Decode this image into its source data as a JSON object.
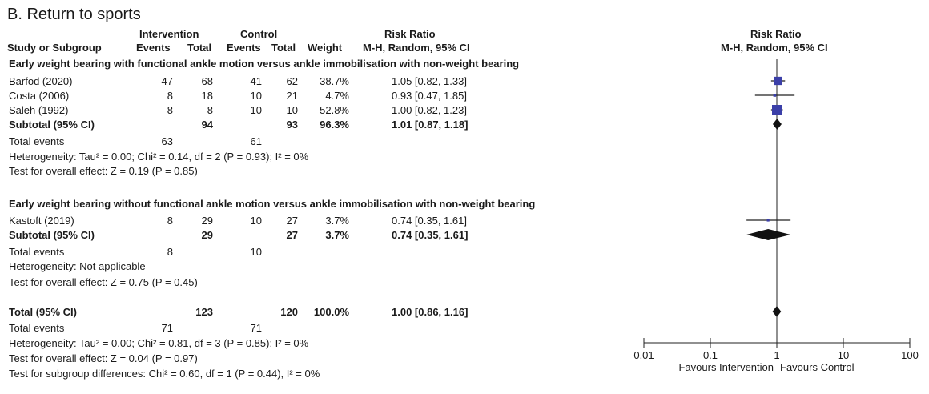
{
  "panel_title": "B. Return to sports",
  "headers": {
    "group_intervention": "Intervention",
    "group_control": "Control",
    "risk_ratio": "Risk Ratio",
    "study": "Study or Subgroup",
    "events_i": "Events",
    "total_i": "Total",
    "events_c": "Events",
    "total_c": "Total",
    "weight": "Weight",
    "method": "M-H, Random, 95% CI",
    "plot_title": "Risk Ratio",
    "plot_method": "M-H, Random, 95% CI"
  },
  "subgroups": [
    {
      "name": "Early weight bearing with functional ankle motion versus ankle immobilisation with non-weight bearing",
      "studies": [
        {
          "study": "Barfod (2020)",
          "ev_i": "47",
          "tot_i": "68",
          "ev_c": "41",
          "tot_c": "62",
          "weight": "38.7%",
          "ci": "1.05 [0.82, 1.33]"
        },
        {
          "study": "Costa (2006)",
          "ev_i": "8",
          "tot_i": "18",
          "ev_c": "10",
          "tot_c": "21",
          "weight": "4.7%",
          "ci": "0.93 [0.47, 1.85]"
        },
        {
          "study": "Saleh (1992)",
          "ev_i": "8",
          "tot_i": "8",
          "ev_c": "10",
          "tot_c": "10",
          "weight": "52.8%",
          "ci": "1.00 [0.82, 1.23]"
        }
      ],
      "subtotal": {
        "label": "Subtotal (95% CI)",
        "tot_i": "94",
        "tot_c": "93",
        "weight": "96.3%",
        "ci": "1.01 [0.87, 1.18]"
      },
      "total_events": {
        "label": "Total events",
        "ev_i": "63",
        "ev_c": "61"
      },
      "heterogeneity": "Heterogeneity: Tau² = 0.00; Chi² = 0.14, df = 2 (P = 0.93); I² = 0%",
      "overall": "Test for overall effect: Z = 0.19 (P = 0.85)"
    },
    {
      "name": "Early weight bearing without functional ankle motion versus ankle immobilisation with non-weight bearing",
      "studies": [
        {
          "study": "Kastoft (2019)",
          "ev_i": "8",
          "tot_i": "29",
          "ev_c": "10",
          "tot_c": "27",
          "weight": "3.7%",
          "ci": "0.74 [0.35, 1.61]"
        }
      ],
      "subtotal": {
        "label": "Subtotal (95% CI)",
        "tot_i": "29",
        "tot_c": "27",
        "weight": "3.7%",
        "ci": "0.74 [0.35, 1.61]"
      },
      "total_events": {
        "label": "Total events",
        "ev_i": "8",
        "ev_c": "10"
      },
      "heterogeneity": "Heterogeneity: Not applicable",
      "overall": "Test for overall effect: Z = 0.75 (P = 0.45)"
    }
  ],
  "total": {
    "label": "Total (95% CI)",
    "tot_i": "123",
    "tot_c": "120",
    "weight": "100.0%",
    "ci": "1.00 [0.86, 1.16]"
  },
  "total_events": {
    "label": "Total events",
    "ev_i": "71",
    "ev_c": "71"
  },
  "total_heterogeneity": "Heterogeneity: Tau² = 0.00; Chi² = 0.81, df = 3 (P = 0.85); I² = 0%",
  "total_overall": "Test for overall effect: Z = 0.04 (P = 0.97)",
  "subgroup_differences": "Test for subgroup differences: Chi² = 0.60, df = 1 (P = 0.44), I² = 0%",
  "chart_data": {
    "type": "scatter",
    "scale": "log",
    "xlim": [
      0.01,
      100
    ],
    "ticks": [
      "0.01",
      "0.1",
      "1",
      "10",
      "100"
    ],
    "tick_values": [
      0.01,
      0.1,
      1,
      10,
      100
    ],
    "xlabel_left": "Favours Intervention",
    "xlabel_right": "Favours Control",
    "marker_color": "#3b3fa8",
    "studies": [
      {
        "study": "Barfod (2020)",
        "rr": 1.05,
        "lo": 0.82,
        "hi": 1.33,
        "weight": 38.7
      },
      {
        "study": "Costa (2006)",
        "rr": 0.93,
        "lo": 0.47,
        "hi": 1.85,
        "weight": 4.7
      },
      {
        "study": "Saleh (1992)",
        "rr": 1.0,
        "lo": 0.82,
        "hi": 1.23,
        "weight": 52.8
      },
      {
        "study": "Kastoft (2019)",
        "rr": 0.74,
        "lo": 0.35,
        "hi": 1.61,
        "weight": 3.7
      }
    ],
    "diamonds": [
      {
        "label": "Subtotal (95% CI)",
        "rr": 1.01,
        "lo": 0.87,
        "hi": 1.18
      },
      {
        "label": "Subtotal (95% CI)",
        "rr": 0.74,
        "lo": 0.35,
        "hi": 1.61
      },
      {
        "label": "Total (95% CI)",
        "rr": 1.0,
        "lo": 0.86,
        "hi": 1.16
      }
    ]
  }
}
